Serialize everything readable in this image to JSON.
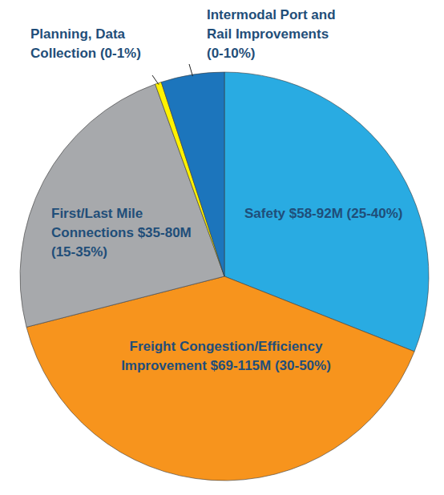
{
  "chart_data": {
    "type": "pie",
    "categories": [
      "Safety $58-92M (25-40%)",
      "Freight Congestion/Efficiency\nImprovement $69-115M (30-50%)",
      "First/Last Mile\nConnections $35-80M\n(15-35%)",
      "Planning, Data\nCollection (0-1%)",
      "Intermodal Port and\nRail Improvements\n(0-10%)"
    ],
    "values": [
      31,
      40,
      23.5,
      0.5,
      5
    ],
    "colors": [
      "#29abe2",
      "#f7941d",
      "#a7a9ac",
      "#fff200",
      "#1c75bc"
    ]
  }
}
